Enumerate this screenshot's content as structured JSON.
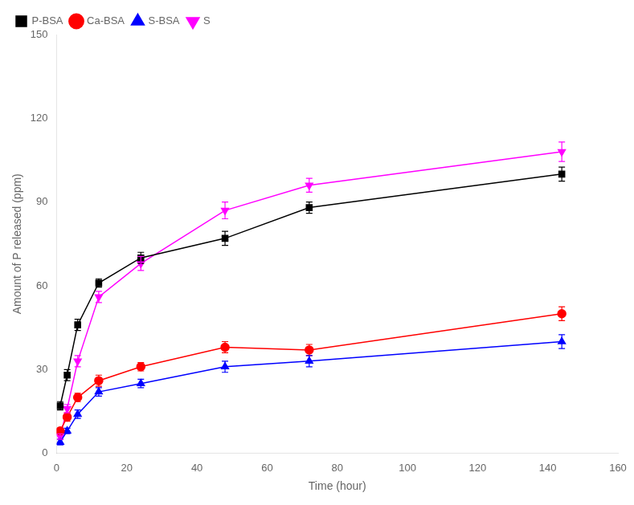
{
  "chart_data": {
    "type": "line",
    "xlabel": "Time (hour)",
    "ylabel": "Amount of P released (ppm)",
    "x": [
      1,
      3,
      6,
      12,
      24,
      48,
      72,
      144
    ],
    "series": [
      {
        "name": "P-BSA",
        "color": "#000000",
        "marker": "square",
        "values": [
          17,
          28,
          46,
          61,
          70,
          77,
          88,
          100
        ],
        "yerr": [
          1.5,
          2.0,
          2.0,
          1.5,
          2.0,
          2.5,
          2.0,
          2.5
        ]
      },
      {
        "name": "Ca-BSA",
        "color": "#ff0000",
        "marker": "circle",
        "values": [
          8,
          13,
          20,
          26,
          31,
          38,
          37,
          50
        ],
        "yerr": [
          1.0,
          1.5,
          1.5,
          2.0,
          1.5,
          2.0,
          2.0,
          2.5
        ]
      },
      {
        "name": "S-BSA",
        "color": "#0000ff",
        "marker": "triangle-up",
        "values": [
          4,
          8,
          14,
          22,
          25,
          31,
          33,
          40
        ],
        "yerr": [
          1.0,
          1.0,
          1.5,
          1.5,
          1.5,
          2.0,
          2.0,
          2.5
        ]
      },
      {
        "name": "S",
        "color": "#ff00ff",
        "marker": "triangle-down",
        "values": [
          6,
          16,
          33,
          56,
          68,
          87,
          96,
          108
        ],
        "yerr": [
          1.0,
          1.5,
          2.0,
          2.0,
          2.5,
          3.0,
          2.5,
          3.5
        ]
      }
    ],
    "xlim": [
      0,
      160
    ],
    "ylim": [
      0,
      150
    ],
    "xticks": [
      0,
      20,
      40,
      60,
      80,
      100,
      120,
      140,
      160
    ],
    "yticks": [
      0,
      30,
      60,
      90,
      120,
      150
    ],
    "grid": false,
    "legend": "upper left"
  }
}
